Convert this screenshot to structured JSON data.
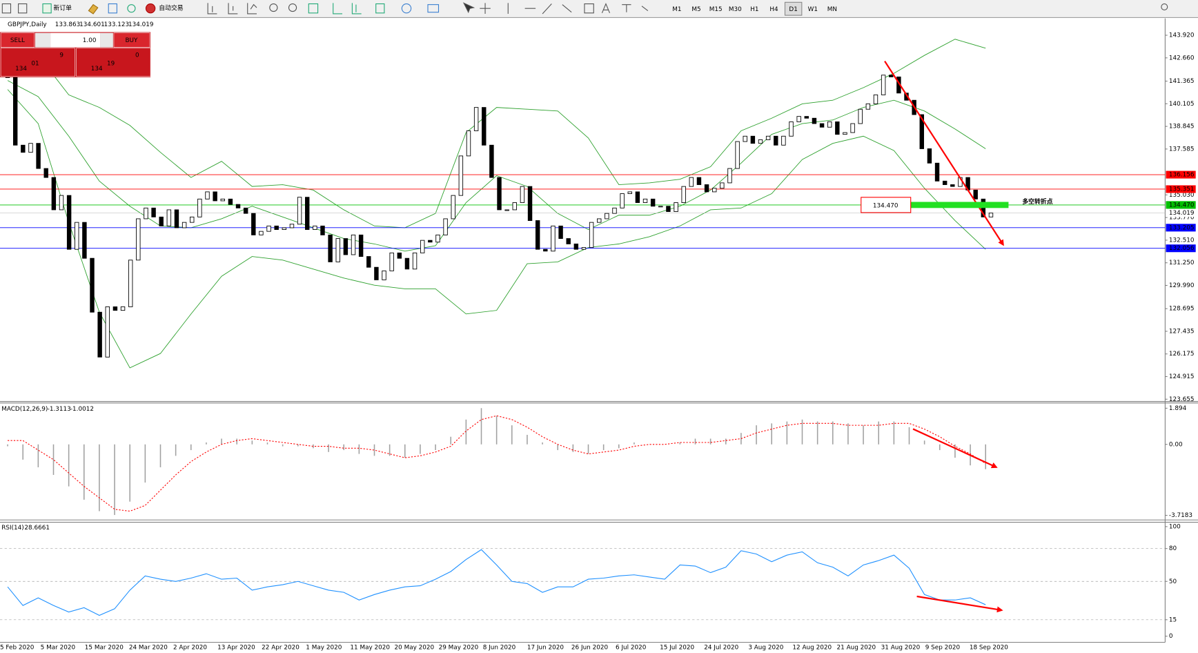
{
  "toolbar": {
    "buttons": [
      "新订单",
      "自动交易"
    ],
    "timeframes": [
      "M1",
      "M5",
      "M15",
      "M30",
      "H1",
      "H4",
      "D1",
      "W1",
      "MN"
    ],
    "active_timeframe": "D1"
  },
  "trade_panel": {
    "sell_label": "SELL",
    "buy_label": "BUY",
    "lot": "1.00",
    "sell_price": {
      "big": "134",
      "main": "01",
      "small": "9"
    },
    "buy_price": {
      "big": "134",
      "main": "19",
      "small": "0"
    }
  },
  "chart_data": [
    {
      "type": "candlestick",
      "title": "GBPJPY,Daily",
      "open": 133.863,
      "high": 134.601,
      "low": 133.123,
      "close": 134.019,
      "values": [
        141.6,
        137.8,
        137.4,
        137.9,
        136.5,
        136.0,
        134.2,
        135.0,
        132.0,
        133.5,
        131.5,
        128.5,
        126.0,
        128.8,
        128.6,
        128.8,
        131.4,
        133.7,
        134.3,
        133.8,
        133.3,
        134.2,
        133.2,
        133.5,
        133.8,
        134.8,
        135.2,
        134.7,
        134.8,
        134.5,
        134.3,
        134.0,
        132.8,
        133.0,
        133.3,
        133.1,
        133.2,
        133.4,
        134.9,
        133.1,
        133.3,
        132.8,
        131.3,
        132.6,
        131.7,
        132.8,
        131.6,
        131.0,
        130.3,
        130.8,
        131.8,
        131.5,
        130.9,
        131.8,
        132.5,
        132.4,
        132.8,
        133.7,
        135.0,
        137.2,
        138.6,
        139.9,
        137.8,
        136.0,
        134.2,
        134.2,
        134.6,
        135.5,
        133.6,
        132.0,
        131.9,
        133.3,
        132.6,
        132.3,
        132.0,
        132.1,
        133.5,
        133.7,
        134.0,
        134.3,
        135.1,
        135.2,
        134.6,
        134.8,
        134.4,
        134.4,
        134.1,
        134.6,
        135.5,
        136.0,
        135.6,
        135.2,
        135.4,
        135.7,
        136.5,
        138.0,
        138.3,
        137.9,
        138.1,
        138.3,
        137.8,
        138.3,
        139.1,
        139.4,
        139.3,
        139.0,
        138.8,
        139.1,
        138.4,
        138.5,
        139.0,
        139.8,
        140.1,
        140.6,
        141.7,
        141.6,
        140.7,
        140.3,
        139.5,
        137.6,
        136.8,
        135.8,
        135.6,
        135.5,
        136.0,
        135.3,
        134.8,
        133.8,
        134.019
      ],
      "bollinger": {
        "color": "#2ca02c",
        "upper": [
          143.0,
          142.8,
          140.6,
          139.9,
          138.9,
          137.4,
          136.0,
          136.9,
          135.5,
          135.6,
          135.3,
          134.2,
          133.3,
          133.2,
          134.0,
          138.5,
          139.9,
          139.8,
          139.7,
          138.2,
          135.6,
          135.7,
          135.9,
          136.6,
          138.6,
          139.3,
          140.1,
          140.3,
          141.0,
          141.8,
          142.8,
          143.7,
          143.2
        ],
        "middle": [
          141.4,
          140.5,
          138.3,
          135.8,
          134.4,
          133.3,
          133.2,
          133.7,
          134.4,
          133.8,
          133.2,
          132.6,
          132.3,
          131.9,
          132.2,
          134.6,
          136.1,
          135.5,
          134.0,
          133.1,
          133.9,
          133.9,
          134.4,
          135.3,
          136.8,
          138.4,
          139.0,
          139.2,
          139.9,
          140.3,
          139.7,
          138.7,
          137.6
        ],
        "lower": [
          140.9,
          139.0,
          133.5,
          128.5,
          125.4,
          126.2,
          128.4,
          130.5,
          131.6,
          131.4,
          130.9,
          130.4,
          130.0,
          129.8,
          129.8,
          128.4,
          128.6,
          131.2,
          131.3,
          132.1,
          132.3,
          132.7,
          133.3,
          134.2,
          134.3,
          135.1,
          137.0,
          137.9,
          138.3,
          137.5,
          135.4,
          133.6,
          132.0
        ]
      },
      "levels": [
        {
          "price": 136.156,
          "color": "#ff0000"
        },
        {
          "price": 135.351,
          "color": "#ff0000"
        },
        {
          "price": {
            "value": 134.47,
            "label": "134.470"
          },
          "color": "#00c000"
        },
        {
          "price": 133.205,
          "color": "#0000ff"
        },
        {
          "price": 132.056,
          "color": "#0000ff"
        }
      ],
      "bid": 134.019,
      "annotation": {
        "price": {
          "value": 134.47,
          "label": "134.470"
        },
        "text": "多空转折点"
      },
      "ylim": [
        123.53,
        144.86
      ],
      "yticks": [
        {
          "value": 143.92,
          "label": "143.920"
        },
        {
          "value": 142.66,
          "label": "142.660"
        },
        141.365,
        140.105,
        138.845,
        137.585,
        {
          "value": 135.03,
          "label": "135.030"
        },
        {
          "value": 133.77,
          "label": "133.770"
        },
        {
          "value": 132.51,
          "label": "132.510"
        },
        {
          "value": 131.25,
          "label": "131.250"
        },
        {
          "value": 129.99,
          "label": "129.990"
        },
        128.695,
        127.435,
        126.175,
        124.915,
        123.655
      ],
      "x_labels": [
        "5 Feb 2020",
        "5 Mar 2020",
        "15 Mar 2020",
        "24 Mar 2020",
        "2 Apr 2020",
        "13 Apr 2020",
        "22 Apr 2020",
        "1 May 2020",
        "11 May 2020",
        "20 May 2020",
        "29 May 2020",
        "8 Jun 2020",
        "17 Jun 2020",
        "26 Jun 2020",
        "6 Jul 2020",
        "15 Jul 2020",
        "24 Jul 2020",
        "3 Aug 2020",
        "12 Aug 2020",
        "21 Aug 2020",
        "31 Aug 2020",
        "9 Sep 2020",
        "18 Sep 2020"
      ]
    },
    {
      "type": "macd",
      "title": "MACD(12,26,9)",
      "main": -1.3113,
      "signal_value": -1.0012,
      "hist_color": "#a0a0a0",
      "signal_color": "#ff0000",
      "histogram": [
        -0.1,
        -0.8,
        -1.2,
        -1.6,
        -2.2,
        -2.9,
        -3.5,
        -3.7,
        -3.0,
        -2.0,
        -1.2,
        -0.6,
        -0.3,
        0.1,
        0.3,
        0.3,
        0.2,
        0.1,
        -0.1,
        -0.1,
        -0.2,
        -0.4,
        -0.3,
        -0.5,
        -0.6,
        -0.6,
        -0.7,
        -0.5,
        -0.3,
        0.4,
        1.3,
        1.9,
        1.5,
        1.0,
        0.5,
        0.1,
        -0.3,
        -0.4,
        -0.5,
        -0.3,
        -0.2,
        0.1,
        0.0,
        0.0,
        0.1,
        0.3,
        0.3,
        0.3,
        0.6,
        1.0,
        1.1,
        1.2,
        1.3,
        1.2,
        1.2,
        1.1,
        1.0,
        1.2,
        1.2,
        0.9,
        0.2,
        -0.3,
        -0.7,
        -1.1,
        -1.3
      ],
      "signal": [
        0.2,
        0.2,
        -0.3,
        -0.8,
        -1.5,
        -2.2,
        -2.8,
        -3.4,
        -3.5,
        -3.2,
        -2.4,
        -1.6,
        -0.9,
        -0.4,
        0.0,
        0.2,
        0.3,
        0.2,
        0.1,
        0.0,
        -0.1,
        -0.1,
        -0.2,
        -0.2,
        -0.3,
        -0.5,
        -0.7,
        -0.6,
        -0.4,
        -0.1,
        0.7,
        1.3,
        1.5,
        1.3,
        0.9,
        0.4,
        0.0,
        -0.3,
        -0.5,
        -0.4,
        -0.3,
        -0.1,
        0.0,
        0.0,
        0.1,
        0.1,
        0.1,
        0.2,
        0.3,
        0.6,
        0.8,
        1.0,
        1.1,
        1.1,
        1.1,
        1.0,
        1.0,
        1.0,
        1.1,
        1.1,
        0.8,
        0.4,
        -0.1,
        -0.5,
        -1.0
      ],
      "ylim": [
        -3.96,
        2.13
      ],
      "yticks": [
        1.894,
        {
          "value": 0,
          "label": "0.00"
        },
        -3.7183
      ]
    },
    {
      "type": "line",
      "title": "RSI(14)",
      "current": 28.6661,
      "color": "#1e90ff",
      "values": [
        45,
        28,
        35,
        28,
        22,
        26,
        19,
        25,
        42,
        55,
        52,
        50,
        53,
        57,
        52,
        53,
        42,
        45,
        47,
        50,
        46,
        42,
        40,
        33,
        38,
        42,
        45,
        46,
        52,
        59,
        70,
        79,
        65,
        50,
        48,
        40,
        45,
        45,
        52,
        53,
        55,
        56,
        54,
        52,
        65,
        64,
        58,
        63,
        78,
        75,
        68,
        74,
        77,
        67,
        63,
        55,
        65,
        69,
        74,
        62,
        38,
        33,
        33,
        35,
        28.7
      ],
      "levels": [
        80,
        50,
        15
      ],
      "ylim": [
        -5.6,
        104
      ],
      "yticks": [
        100,
        80,
        50,
        15,
        0
      ]
    }
  ]
}
